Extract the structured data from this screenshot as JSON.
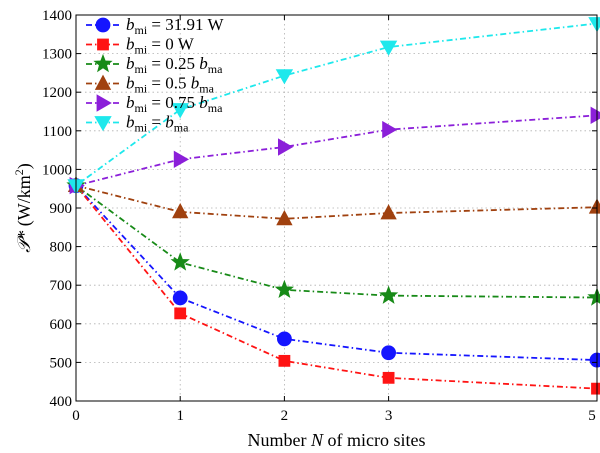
{
  "chart_data": {
    "type": "line",
    "title": "",
    "xlabel_parts": {
      "prefix": "Number ",
      "var": "N",
      "suffix": " of micro sites"
    },
    "ylabel_parts": {
      "symbol": "𝒫*",
      "unit_open": " (W/km",
      "unit_sup": "2",
      "unit_close": ")"
    },
    "x": [
      0,
      1,
      2,
      3,
      5
    ],
    "xlim": [
      0,
      5
    ],
    "ylim": [
      400,
      1400
    ],
    "xticks": [
      "0",
      "1",
      "2",
      "3",
      "5"
    ],
    "yticks": [
      "400",
      "500",
      "600",
      "700",
      "800",
      "900",
      "1000",
      "1100",
      "1200",
      "1300",
      "1400"
    ],
    "grid": true,
    "legend_position": "top-left",
    "series": [
      {
        "name": "b_mi = 31.91 W",
        "legend": {
          "var": "b",
          "sub": "mi",
          "rest": " = 31.91 W",
          "sub2": ""
        },
        "color": "#1515ff",
        "marker": "circle",
        "values": [
          958,
          667,
          561,
          525,
          506
        ]
      },
      {
        "name": "b_mi = 0 W",
        "legend": {
          "var": "b",
          "sub": "mi",
          "rest": " = 0 W",
          "sub2": ""
        },
        "color": "#ff1414",
        "marker": "square",
        "values": [
          958,
          627,
          504,
          460,
          432
        ]
      },
      {
        "name": "b_mi = 0.25 b_ma",
        "legend": {
          "var": "b",
          "sub": "mi",
          "rest": " = 0.25 ",
          "var2": "b",
          "sub2": "ma"
        },
        "color": "#178a17",
        "marker": "star",
        "values": [
          958,
          759,
          688,
          673,
          668
        ]
      },
      {
        "name": "b_mi = 0.5 b_ma",
        "legend": {
          "var": "b",
          "sub": "mi",
          "rest": " = 0.5 ",
          "var2": "b",
          "sub2": "ma"
        },
        "color": "#a0410f",
        "marker": "triangle-up",
        "values": [
          958,
          890,
          872,
          887,
          902
        ]
      },
      {
        "name": "b_mi = 0.75 b_ma",
        "legend": {
          "var": "b",
          "sub": "mi",
          "rest": " = 0.75 ",
          "var2": "b",
          "sub2": "ma"
        },
        "color": "#8b1fd9",
        "marker": "triangle-right",
        "values": [
          958,
          1026,
          1058,
          1103,
          1140
        ]
      },
      {
        "name": "b_mi = b_ma",
        "legend": {
          "var": "b",
          "sub": "mi",
          "rest": " = ",
          "var2": "b",
          "sub2": "ma"
        },
        "color": "#1ee8ec",
        "marker": "triangle-down",
        "values": [
          958,
          1155,
          1243,
          1317,
          1378
        ]
      }
    ]
  }
}
